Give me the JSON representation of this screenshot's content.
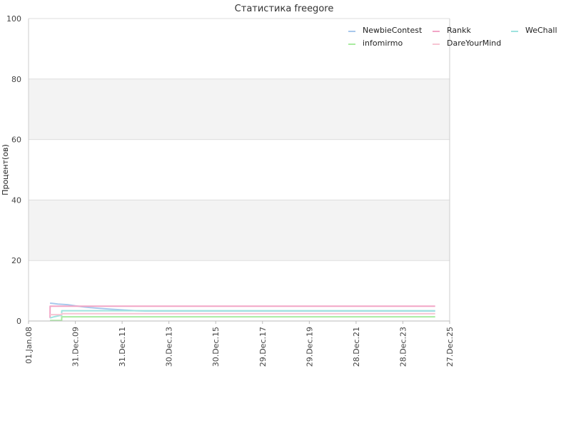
{
  "chart_data": {
    "type": "line",
    "title": "Статистика freegore",
    "xlabel": "",
    "ylabel": "Процент(ов)",
    "ylim": [
      0,
      100
    ],
    "yticks": [
      0,
      20,
      40,
      60,
      80,
      100
    ],
    "xlim": [
      "2008-01-01",
      "2025-12-27"
    ],
    "xticks": [
      {
        "date": "2008-01-01",
        "label": "01.Jan.08"
      },
      {
        "date": "2009-12-31",
        "label": "31.Dec.09"
      },
      {
        "date": "2011-12-31",
        "label": "31.Dec.11"
      },
      {
        "date": "2013-12-30",
        "label": "30.Dec.13"
      },
      {
        "date": "2015-12-30",
        "label": "30.Dec.15"
      },
      {
        "date": "2017-12-29",
        "label": "29.Dec.17"
      },
      {
        "date": "2019-12-29",
        "label": "29.Dec.19"
      },
      {
        "date": "2021-12-28",
        "label": "28.Dec.21"
      },
      {
        "date": "2023-12-28",
        "label": "28.Dec.23"
      },
      {
        "date": "2025-12-27",
        "label": "27.Dec.25"
      }
    ],
    "grid": true,
    "alternating_bands": true,
    "legend_position": "top-right",
    "series": [
      {
        "name": "NewbieContest",
        "color": "#a8c8ec",
        "points": [
          [
            "2008-12-01",
            5.9
          ],
          [
            "2009-01-15",
            5.8
          ],
          [
            "2009-04-01",
            5.6
          ],
          [
            "2009-09-01",
            5.4
          ],
          [
            "2010-01-01",
            5.0
          ],
          [
            "2010-06-01",
            4.6
          ],
          [
            "2010-11-01",
            4.3
          ],
          [
            "2011-05-01",
            4.0
          ],
          [
            "2011-10-01",
            3.8
          ],
          [
            "2012-03-01",
            3.6
          ],
          [
            "2012-08-01",
            3.4
          ],
          [
            "2013-01-01",
            3.3
          ],
          [
            "2015-01-01",
            3.3
          ],
          [
            "2020-01-01",
            3.3
          ],
          [
            "2025-05-15",
            3.3
          ]
        ]
      },
      {
        "name": "Rankk",
        "color": "#f2a5c6",
        "points": [
          [
            "2008-12-01",
            1.0
          ],
          [
            "2008-12-02",
            4.9
          ],
          [
            "2012-01-01",
            4.9
          ],
          [
            "2025-05-15",
            4.9
          ]
        ]
      },
      {
        "name": "WeChall",
        "color": "#9ee3df",
        "points": [
          [
            "2008-12-01",
            1.0
          ],
          [
            "2009-02-01",
            1.4
          ],
          [
            "2009-05-01",
            1.8
          ],
          [
            "2009-06-01",
            1.8
          ],
          [
            "2009-06-02",
            3.4
          ],
          [
            "2015-01-01",
            3.4
          ],
          [
            "2025-05-15",
            3.4
          ]
        ]
      },
      {
        "name": "infomirmo",
        "color": "#a9eba0",
        "points": [
          [
            "2008-12-01",
            0.2
          ],
          [
            "2009-06-01",
            0.2
          ],
          [
            "2009-06-02",
            1.4
          ],
          [
            "2015-01-01",
            1.4
          ],
          [
            "2025-05-15",
            1.4
          ]
        ]
      },
      {
        "name": "DareYourMind",
        "color": "#f7c5d3",
        "points": [
          [
            "2008-12-01",
            2.1
          ],
          [
            "2009-06-01",
            2.1
          ],
          [
            "2009-06-02",
            2.4
          ],
          [
            "2015-01-01",
            2.4
          ],
          [
            "2025-05-15",
            2.4
          ]
        ]
      }
    ],
    "legend": [
      {
        "name": "NewbieContest",
        "color": "#a8c8ec"
      },
      {
        "name": "Rankk",
        "color": "#f2a5c6"
      },
      {
        "name": "WeChall",
        "color": "#9ee3df"
      },
      {
        "name": "infomirmo",
        "color": "#a9eba0"
      },
      {
        "name": "DareYourMind",
        "color": "#f7c5d3"
      }
    ]
  }
}
